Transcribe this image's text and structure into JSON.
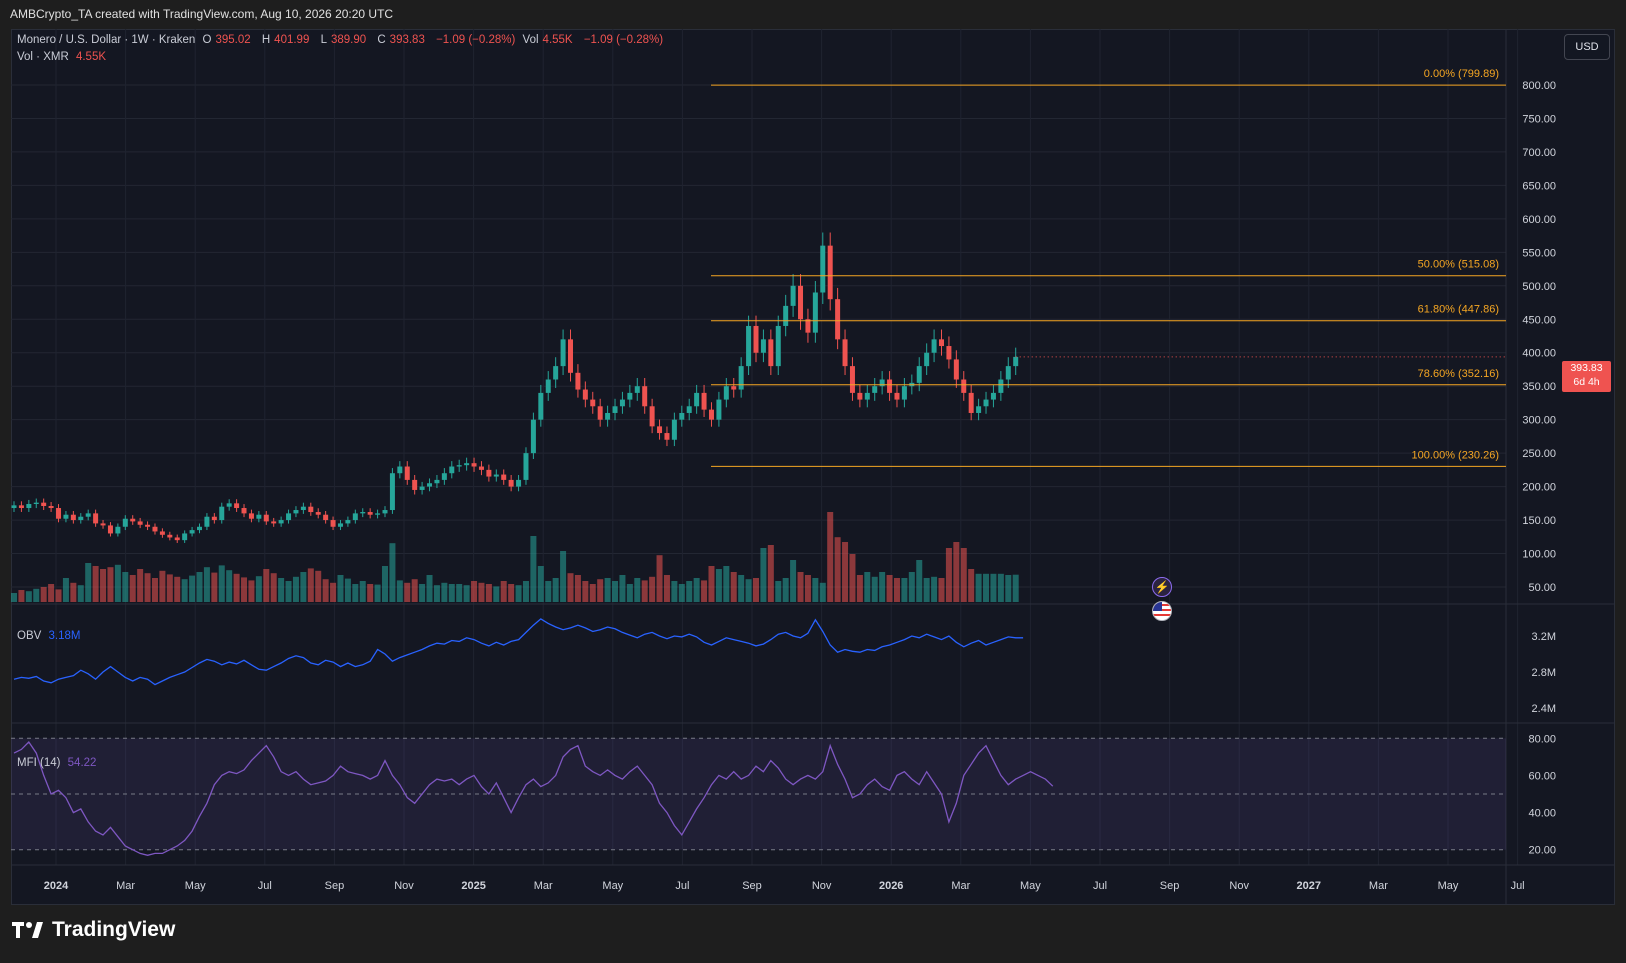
{
  "header": {
    "credit": "AMBCrypto_TA created with TradingView.com, Aug 10, 2026 20:20 UTC"
  },
  "legend": {
    "symbol": "Monero / U.S. Dollar · 1W · Kraken",
    "o_label": "O",
    "o_val": "395.02",
    "h_label": "H",
    "h_val": "401.99",
    "l_label": "L",
    "l_val": "389.90",
    "c_label": "C",
    "c_val": "393.83",
    "change": "−1.09 (−0.28%)",
    "vol_label": "Vol",
    "vol_val": "4.55K",
    "vol_change": "−1.09 (−0.28%)",
    "vol_line_label": "Vol · XMR",
    "vol_line_val": "4.55K"
  },
  "currency_button": "USD",
  "price_tag": {
    "price": "393.83",
    "countdown": "6d 4h"
  },
  "brand": {
    "name": "TradingView"
  },
  "colors": {
    "up": "#26a69a",
    "down": "#ef5350",
    "fib": "#f5a623",
    "obv": "#2962ff",
    "mfi": "#7e57c2",
    "bg": "#141722"
  },
  "chart_data": [
    {
      "type": "candlestick",
      "title": "Monero / U.S. Dollar · 1W · Kraken",
      "y_axis_ticks": [
        "800.00",
        "750.00",
        "700.00",
        "650.00",
        "600.00",
        "550.00",
        "500.00",
        "450.00",
        "400.00",
        "350.00",
        "300.00",
        "250.00",
        "200.00",
        "150.00",
        "100.00",
        "50.00"
      ],
      "x_axis_ticks": [
        "2024",
        "Mar",
        "May",
        "Jul",
        "Sep",
        "Nov",
        "2025",
        "Mar",
        "May",
        "Jul",
        "Sep",
        "Nov",
        "2026",
        "Mar",
        "May",
        "Jul",
        "Sep",
        "Nov",
        "2027",
        "Mar",
        "May",
        "Jul"
      ],
      "fib_levels": [
        {
          "label": "0.00% (799.89)",
          "price": 799.89
        },
        {
          "label": "50.00% (515.08)",
          "price": 515.08
        },
        {
          "label": "61.80% (447.86)",
          "price": 447.86
        },
        {
          "label": "78.60% (352.16)",
          "price": 352.16
        },
        {
          "label": "100.00% (230.26)",
          "price": 230.26
        }
      ],
      "last_close": 393.83,
      "close_series": [
        172,
        168,
        174,
        176,
        171,
        168,
        152,
        158,
        150,
        155,
        160,
        145,
        142,
        130,
        140,
        152,
        148,
        143,
        140,
        133,
        128,
        124,
        120,
        130,
        135,
        140,
        155,
        150,
        170,
        175,
        168,
        160,
        152,
        158,
        148,
        145,
        150,
        160,
        165,
        170,
        162,
        158,
        150,
        140,
        145,
        150,
        160,
        162,
        158,
        160,
        165,
        220,
        230,
        210,
        195,
        200,
        205,
        210,
        220,
        230,
        232,
        235,
        230,
        225,
        215,
        218,
        210,
        200,
        210,
        250,
        300,
        340,
        360,
        380,
        420,
        370,
        345,
        330,
        320,
        300,
        310,
        320,
        330,
        340,
        350,
        320,
        290,
        280,
        270,
        300,
        310,
        320,
        340,
        315,
        300,
        330,
        350,
        345,
        380,
        440,
        400,
        420,
        380,
        440,
        470,
        500,
        450,
        430,
        490,
        560,
        480,
        420,
        380,
        340,
        330,
        340,
        350,
        360,
        340,
        330,
        350,
        355,
        380,
        400,
        420,
        410,
        390,
        360,
        340,
        310,
        320,
        330,
        340,
        360,
        380,
        393.83
      ],
      "volume_series": [
        1.5,
        2.0,
        1.8,
        2.2,
        2.5,
        3.0,
        2.1,
        4.0,
        3.2,
        2.8,
        6.5,
        6.0,
        5.5,
        5.8,
        6.2,
        5.0,
        4.5,
        5.5,
        4.8,
        4.0,
        5.2,
        4.6,
        4.2,
        3.8,
        4.4,
        5.0,
        5.8,
        4.9,
        6.1,
        5.3,
        4.7,
        4.1,
        3.6,
        4.3,
        5.5,
        4.8,
        4.0,
        3.5,
        4.2,
        5.0,
        5.6,
        5.2,
        3.8,
        3.2,
        4.5,
        3.9,
        3.0,
        3.5,
        3.0,
        2.9,
        6.0,
        9.8,
        3.6,
        3.2,
        3.8,
        3.0,
        4.5,
        2.8,
        3.2,
        3.0,
        3.0,
        2.8,
        3.5,
        3.2,
        3.0,
        2.6,
        3.5,
        3.0,
        2.8,
        3.5,
        11.0,
        6.0,
        3.5,
        4.0,
        8.5,
        4.8,
        4.5,
        3.5,
        3.0,
        3.8,
        4.0,
        3.5,
        4.5,
        3.0,
        4.0,
        3.6,
        4.2,
        7.8,
        4.5,
        3.5,
        3.0,
        3.5,
        4.0,
        3.6,
        6.0,
        5.5,
        6.0,
        5.0,
        4.5,
        3.8,
        4.0,
        9.0,
        9.5,
        3.5,
        4.0,
        7.0,
        5.0,
        4.5,
        4.0,
        3.2,
        15.0,
        10.8,
        10.0,
        8.0,
        4.5,
        5.0,
        4.2,
        5.0,
        4.5,
        4.0,
        4.0,
        5.0,
        7.0,
        4.0,
        4.2,
        4.0,
        9.0,
        10.0,
        9.0,
        5.5,
        4.7,
        4.7,
        4.7,
        4.7,
        4.5,
        4.55
      ]
    },
    {
      "type": "line",
      "title": "OBV",
      "label": "OBV",
      "value_label": "3.18M",
      "y_axis_ticks": [
        "3.2M",
        "2.8M",
        "2.4M"
      ],
      "ylim": [
        2.3,
        3.5
      ],
      "values": [
        2.72,
        2.74,
        2.73,
        2.75,
        2.7,
        2.68,
        2.72,
        2.74,
        2.76,
        2.82,
        2.78,
        2.72,
        2.8,
        2.86,
        2.8,
        2.74,
        2.7,
        2.74,
        2.72,
        2.66,
        2.7,
        2.74,
        2.77,
        2.8,
        2.85,
        2.9,
        2.94,
        2.92,
        2.88,
        2.91,
        2.89,
        2.93,
        2.88,
        2.83,
        2.82,
        2.86,
        2.9,
        2.95,
        2.98,
        2.96,
        2.9,
        2.88,
        2.93,
        2.91,
        2.86,
        2.9,
        2.86,
        2.88,
        2.92,
        3.05,
        3.0,
        2.92,
        2.96,
        2.99,
        3.02,
        3.05,
        3.09,
        3.12,
        3.11,
        3.15,
        3.14,
        3.18,
        3.16,
        3.12,
        3.09,
        3.13,
        3.1,
        3.14,
        3.16,
        3.24,
        3.32,
        3.39,
        3.34,
        3.3,
        3.27,
        3.29,
        3.32,
        3.29,
        3.25,
        3.27,
        3.3,
        3.28,
        3.24,
        3.21,
        3.18,
        3.22,
        3.24,
        3.2,
        3.17,
        3.2,
        3.19,
        3.22,
        3.19,
        3.13,
        3.1,
        3.14,
        3.18,
        3.16,
        3.14,
        3.12,
        3.09,
        3.11,
        3.16,
        3.22,
        3.24,
        3.2,
        3.18,
        3.23,
        3.38,
        3.25,
        3.1,
        3.02,
        3.05,
        3.03,
        3.02,
        3.05,
        3.04,
        3.08,
        3.1,
        3.13,
        3.16,
        3.2,
        3.18,
        3.22,
        3.19,
        3.16,
        3.2,
        3.13,
        3.08,
        3.12,
        3.15,
        3.1,
        3.13,
        3.16,
        3.19,
        3.18,
        3.18
      ]
    },
    {
      "type": "line",
      "title": "MFI (14)",
      "label": "MFI (14)",
      "value_label": "54.22",
      "y_axis_ticks": [
        "80.00",
        "60.00",
        "40.00",
        "20.00"
      ],
      "ylim": [
        15,
        85
      ],
      "band": [
        20,
        80
      ],
      "values": [
        72,
        74,
        78,
        72,
        60,
        50,
        52,
        48,
        40,
        42,
        35,
        30,
        28,
        32,
        27,
        22,
        20,
        18,
        17,
        18,
        18,
        20,
        22,
        25,
        30,
        38,
        45,
        55,
        60,
        62,
        61,
        63,
        68,
        72,
        76,
        70,
        62,
        60,
        62,
        58,
        55,
        56,
        57,
        60,
        65,
        62,
        61,
        60,
        58,
        60,
        68,
        60,
        55,
        48,
        45,
        50,
        55,
        58,
        57,
        58,
        55,
        58,
        60,
        54,
        50,
        56,
        48,
        40,
        48,
        55,
        58,
        54,
        56,
        60,
        70,
        74,
        76,
        65,
        62,
        60,
        63,
        60,
        58,
        62,
        65,
        60,
        55,
        45,
        40,
        33,
        28,
        35,
        42,
        48,
        55,
        60,
        58,
        62,
        58,
        60,
        65,
        62,
        68,
        64,
        58,
        55,
        58,
        60,
        58,
        62,
        76,
        66,
        58,
        48,
        50,
        55,
        58,
        54,
        52,
        60,
        62,
        58,
        55,
        62,
        56,
        50,
        35,
        45,
        60,
        66,
        72,
        76,
        68,
        60,
        55,
        58,
        60,
        62,
        60,
        58,
        54.22
      ]
    }
  ]
}
